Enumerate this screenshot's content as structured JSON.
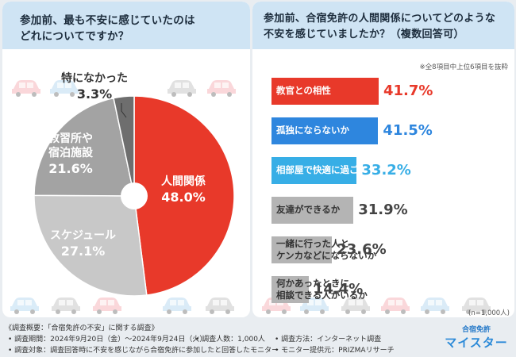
{
  "left": {
    "question_l1": "参加前、最も不安に感じていたのは",
    "question_l2": "どれについてですか？"
  },
  "right": {
    "question_l1": "参加前、合宿免許の人間関係についてどのような",
    "question_l2": "不安を感じていましたか？（複数回答可）",
    "note": "※全8項目中上位6項目を抜粋",
    "sample": "(n=1,000人)"
  },
  "chart_data": [
    {
      "type": "pie",
      "title": "参加前、最も不安に感じていたのはどれについてですか？",
      "slices": [
        {
          "label": "人間関係",
          "value": 48.0,
          "display": "48.0%",
          "color": "#e8392a"
        },
        {
          "label": "スケジュール",
          "value": 27.1,
          "display": "27.1%",
          "color": "#c8c8c8"
        },
        {
          "label": "教習所や宿泊施設",
          "label_l1": "教習所や",
          "label_l2": "宿泊施設",
          "value": 21.6,
          "display": "21.6%",
          "color": "#a3a3a3"
        },
        {
          "label": "特になかった",
          "value": 3.3,
          "display": "3.3%",
          "color": "#6e6e6e"
        }
      ]
    },
    {
      "type": "bar",
      "orientation": "horizontal",
      "title": "参加前、合宿免許の人間関係についてどのような不安を感じていましたか？（複数回答可）",
      "xlim": [
        0,
        50
      ],
      "series": [
        {
          "label": "教官との相性",
          "value": 41.7,
          "display": "41.7%",
          "color": "#e8392a",
          "text_color": "#e8392a"
        },
        {
          "label": "孤独にならないか",
          "value": 41.5,
          "display": "41.5%",
          "color": "#2e86de",
          "text_color": "#2e86de"
        },
        {
          "label": "相部屋で快適に過ごせるか",
          "value": 33.2,
          "display": "33.2%",
          "color": "#37aee6",
          "text_color": "#37aee6"
        },
        {
          "label": "友達ができるか",
          "value": 31.9,
          "display": "31.9%",
          "color": "#b4b4b4",
          "text_color": "#444444"
        },
        {
          "label": "一緒に行った人とケンカなどにならないか",
          "label_l1": "一緒に行った人と",
          "label_l2": "ケンカなどにならないか",
          "value": 23.6,
          "display": "23.6%",
          "color": "#b4b4b4",
          "text_color": "#444444"
        },
        {
          "label": "何かあったときに相談できる人がいるか",
          "label_l1": "何かあったときに",
          "label_l2": "相談できる人がいるか",
          "value": 14.4,
          "display": "14.4%",
          "color": "#b4b4b4",
          "text_color": "#444444"
        }
      ]
    }
  ],
  "footer": {
    "overview": "《調査概要：「合宿免許の不安」に関する調査》",
    "period": "• 調査期間：2024年9月20日（金）～2024年9月24日（火）",
    "respondents": "• 調査人数：1,000人",
    "method": "• 調査方法：インターネット調査",
    "target": "• 調査対象：調査回答時に不安を感じながら合宿免許に参加したと回答したモニター",
    "provider": "• モニター提供元：PRIZMAリサーチ"
  },
  "logo": {
    "sub": "合宿免許",
    "main": "マイスター"
  },
  "colors": {
    "background": "#e9edf1",
    "header": "#cfe4f4",
    "accent_red": "#e8392a",
    "accent_blue": "#2e86de"
  }
}
